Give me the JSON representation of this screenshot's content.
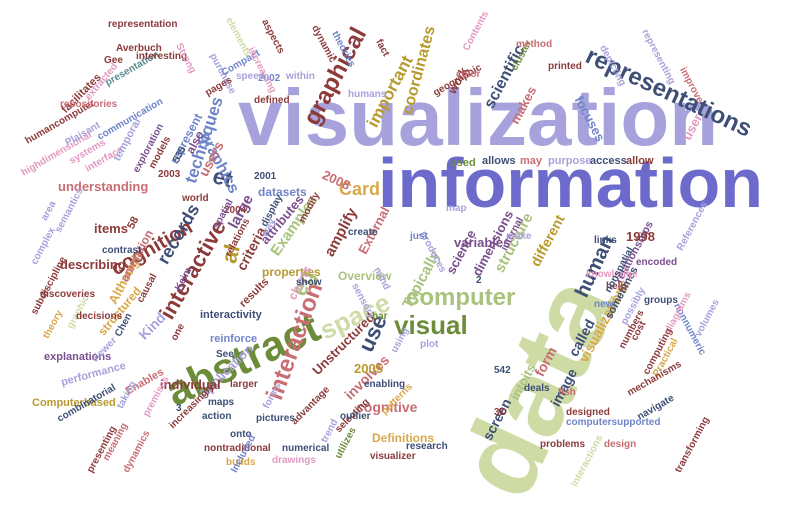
{
  "title": "",
  "palette": {
    "lavender": "#a7a2db",
    "indigo": "#6c6acb",
    "olive": "#a9c27d",
    "sage": "#cfdba5",
    "navy": "#3e4f76",
    "maroon": "#8c3b3a",
    "rose": "#c96d74",
    "pink": "#e39ac2",
    "gold": "#d9a84b",
    "mustard": "#b89b2f",
    "green": "#6c8c3a",
    "brown": "#7a4a32",
    "teal": "#5b8c8e",
    "purple": "#7a4f8e",
    "blue": "#6f85c9"
  },
  "words": [
    {
      "text": "visualization",
      "color": "#a7a2db"
    },
    {
      "text": "information",
      "color": "#6c6acb"
    },
    {
      "text": "data",
      "color": "#cfdba5"
    },
    {
      "text": "abstract",
      "color": "#6c8c3a"
    },
    {
      "text": "representations",
      "color": "#3e4f76"
    },
    {
      "text": "interaction",
      "color": "#c96d74"
    },
    {
      "text": "computer",
      "color": "#a9c27d"
    },
    {
      "text": "visual",
      "color": "#6c8c3a"
    },
    {
      "text": "space",
      "color": "#cfdba5"
    },
    {
      "text": "interactive",
      "color": "#8c3b3a"
    },
    {
      "text": "graphical",
      "color": "#8c3b3a"
    },
    {
      "text": "cognition",
      "color": "#8c3b3a"
    },
    {
      "text": "human",
      "color": "#3e4f76"
    },
    {
      "text": "records",
      "color": "#3e4f76"
    },
    {
      "text": "Card",
      "color": "#d9a84b"
    },
    {
      "text": "use",
      "color": "#3e4f76"
    },
    {
      "text": "eg",
      "color": "#a9c27d"
    },
    {
      "text": "et",
      "color": "#3e4f76"
    },
    {
      "text": "al",
      "color": "#b89b2f"
    },
    {
      "text": "techniques",
      "color": "#6f85c9"
    },
    {
      "text": "graphics",
      "color": "#6f85c9"
    },
    {
      "text": "scientific",
      "color": "#3e4f76"
    },
    {
      "text": "important",
      "color": "#b89b2f"
    },
    {
      "text": "coordinates",
      "color": "#b89b2f"
    },
    {
      "text": "users",
      "color": "#c96d74"
    },
    {
      "text": "understanding",
      "color": "#c96d74"
    },
    {
      "text": "amplify",
      "color": "#8c3b3a"
    },
    {
      "text": "Examples",
      "color": "#a9c27d"
    },
    {
      "text": "Typically",
      "color": "#a9c27d"
    },
    {
      "text": "structure",
      "color": "#a9c27d"
    },
    {
      "text": "different",
      "color": "#b89b2f"
    },
    {
      "text": "visualizations",
      "color": "#d9a84b"
    },
    {
      "text": "Unstructured",
      "color": "#8c3b3a"
    },
    {
      "text": "involves",
      "color": "#c96d74"
    },
    {
      "text": "cognitive",
      "color": "#c96d74"
    },
    {
      "text": "called",
      "color": "#3e4f76"
    },
    {
      "text": "form",
      "color": "#c96d74"
    },
    {
      "text": "image",
      "color": "#3e4f76"
    },
    {
      "text": "screen",
      "color": "#3e4f76"
    },
    {
      "text": "intoits",
      "color": "#a9c27d"
    },
    {
      "text": "Application",
      "color": "#a7a2db"
    },
    {
      "text": "individual",
      "color": "#8c3b3a"
    },
    {
      "text": "Kind",
      "color": "#a7a2db"
    },
    {
      "text": "items",
      "color": "#8c3b3a"
    },
    {
      "text": "describing",
      "color": "#8c3b3a"
    },
    {
      "text": "attributes",
      "color": "#7a4f8e"
    },
    {
      "text": "criteria",
      "color": "#8c3b3a"
    },
    {
      "text": "large",
      "color": "#7a4f8e"
    },
    {
      "text": "External",
      "color": "#c96d74"
    },
    {
      "text": "science",
      "color": "#7a4f8e"
    },
    {
      "text": "dimensions",
      "color": "#7a4f8e"
    },
    {
      "text": "variables",
      "color": "#7a4f8e"
    },
    {
      "text": "relationships",
      "color": "#7a4f8e"
    },
    {
      "text": "makes",
      "color": "#c96d74"
    },
    {
      "text": "focuses",
      "color": "#6f85c9"
    },
    {
      "text": "user",
      "color": "#e39ac2"
    },
    {
      "text": "work",
      "color": "#8c3b3a"
    },
    {
      "text": "datasets",
      "color": "#6f85c9"
    },
    {
      "text": "also",
      "color": "#7a4f8e"
    },
    {
      "text": "2008",
      "color": "#c96d74"
    },
    {
      "text": "1998",
      "color": "#8c3b3a"
    },
    {
      "text": "2005",
      "color": "#b89b2f"
    },
    {
      "text": "Definitions",
      "color": "#d9a84b"
    },
    {
      "text": "Enables",
      "color": "#c96d74"
    },
    {
      "text": "Computerbased",
      "color": "#b89b2f"
    },
    {
      "text": "explanations",
      "color": "#7a4f8e"
    },
    {
      "text": "performance",
      "color": "#a7a2db"
    },
    {
      "text": "structured",
      "color": "#d9a84b"
    },
    {
      "text": "Although",
      "color": "#d9a84b"
    },
    {
      "text": "animation",
      "color": "#c96d74"
    },
    {
      "text": "properties",
      "color": "#b89b2f"
    },
    {
      "text": "interactivity",
      "color": "#3e4f76"
    },
    {
      "text": "reinforce",
      "color": "#6f85c9"
    },
    {
      "text": "charts",
      "color": "#e39ac2"
    },
    {
      "text": "Overview",
      "color": "#a9c27d"
    },
    {
      "text": "results",
      "color": "#8c3b3a"
    },
    {
      "text": "sometimes",
      "color": "#3e4f76"
    },
    {
      "text": "used",
      "color": "#6c8c3a"
    },
    {
      "text": "allows",
      "color": "#3e4f76"
    },
    {
      "text": "may",
      "color": "#c96d74"
    },
    {
      "text": "purpose",
      "color": "#a7a2db"
    },
    {
      "text": "access",
      "color": "#3e4f76"
    },
    {
      "text": "allow",
      "color": "#8c3b3a"
    },
    {
      "text": "humancomputer",
      "color": "#8c3b3a"
    },
    {
      "text": "facilitates",
      "color": "#8c3b3a"
    },
    {
      "text": "highdimensional",
      "color": "#e39ac2"
    },
    {
      "text": "repositories",
      "color": "#c96d74"
    },
    {
      "text": "Plaisant",
      "color": "#a7a2db"
    },
    {
      "text": "systems",
      "color": "#e39ac2"
    },
    {
      "text": "interface",
      "color": "#e39ac2"
    },
    {
      "text": "communication",
      "color": "#6f85c9"
    },
    {
      "text": "exploration",
      "color": "#7a4f8e"
    },
    {
      "text": "temporal",
      "color": "#a7a2db"
    },
    {
      "text": "models",
      "color": "#8c3b3a"
    },
    {
      "text": "represent",
      "color": "#6f85c9"
    },
    {
      "text": "presentation",
      "color": "#5b8c8e"
    },
    {
      "text": "representation",
      "color": "#8c3b3a"
    },
    {
      "text": "Averbuch",
      "color": "#8c3b3a"
    },
    {
      "text": "Gee",
      "color": "#8c3b3a"
    },
    {
      "text": "extracted",
      "color": "#e39ac2"
    },
    {
      "text": "interesting",
      "color": "#8c3b3a"
    },
    {
      "text": "Strong",
      "color": "#e39ac2"
    },
    {
      "text": "purchase",
      "color": "#a7a2db"
    },
    {
      "text": "Compact",
      "color": "#6f85c9"
    },
    {
      "text": "pages",
      "color": "#8c3b3a"
    },
    {
      "text": "defined",
      "color": "#8c3b3a"
    },
    {
      "text": "2002",
      "color": "#6f85c9"
    },
    {
      "text": "within",
      "color": "#a7a2db"
    },
    {
      "text": "increasing",
      "color": "#e39ac2"
    },
    {
      "text": "aspects",
      "color": "#8c3b3a"
    },
    {
      "text": "elements",
      "color": "#cfdba5"
    },
    {
      "text": "dynamic",
      "color": "#8c3b3a"
    },
    {
      "text": "theories",
      "color": "#6f85c9"
    },
    {
      "text": "fact",
      "color": "#8c3b3a"
    },
    {
      "text": "humans",
      "color": "#a7a2db"
    },
    {
      "text": "geographic",
      "color": "#8c3b3a"
    },
    {
      "text": "cluster",
      "color": "#6c8c3a"
    },
    {
      "text": "method",
      "color": "#c96d74"
    },
    {
      "text": "Contents",
      "color": "#e39ac2"
    },
    {
      "text": "color",
      "color": "#c96d74"
    },
    {
      "text": "printed",
      "color": "#8c3b3a"
    },
    {
      "text": "depicting",
      "color": "#a7a2db"
    },
    {
      "text": "improve",
      "color": "#c96d74"
    },
    {
      "text": "representing",
      "color": "#a7a2db"
    },
    {
      "text": "2003",
      "color": "#8c3b3a"
    },
    {
      "text": "2001",
      "color": "#3e4f76"
    },
    {
      "text": "2004",
      "color": "#8c3b3a"
    },
    {
      "text": "world",
      "color": "#8c3b3a"
    },
    {
      "text": "spatial",
      "color": "#7a4f8e"
    },
    {
      "text": "relations",
      "color": "#8c3b3a"
    },
    {
      "text": "display",
      "color": "#3e4f76"
    },
    {
      "text": "modify",
      "color": "#8c3b3a"
    },
    {
      "text": "way",
      "color": "#a7a2db"
    },
    {
      "text": "create",
      "color": "#3e4f76"
    },
    {
      "text": "show",
      "color": "#3e4f76"
    },
    {
      "text": "map",
      "color": "#a7a2db"
    },
    {
      "text": "internal",
      "color": "#7a4f8e"
    },
    {
      "text": "produces",
      "color": "#a7a2db"
    },
    {
      "text": "just",
      "color": "#6f85c9"
    },
    {
      "text": "make",
      "color": "#a7a2db"
    },
    {
      "text": "links",
      "color": "#3e4f76"
    },
    {
      "text": "encoded",
      "color": "#7a4f8e"
    },
    {
      "text": "References",
      "color": "#a7a2db"
    },
    {
      "text": "knowledge",
      "color": "#e39ac2"
    },
    {
      "text": "help",
      "color": "#8c3b3a"
    },
    {
      "text": "groups",
      "color": "#3e4f76"
    },
    {
      "text": "cost",
      "color": "#8c3b3a"
    },
    {
      "text": "nonnumeric",
      "color": "#6f85c9"
    },
    {
      "text": "diagrams",
      "color": "#e39ac2"
    },
    {
      "text": "Practical",
      "color": "#d9a84b"
    },
    {
      "text": "computing",
      "color": "#8c3b3a"
    },
    {
      "text": "mechanisms",
      "color": "#8c3b3a"
    },
    {
      "text": "navigate",
      "color": "#3e4f76"
    },
    {
      "text": "designed",
      "color": "#8c3b3a"
    },
    {
      "text": "computersupported",
      "color": "#6f85c9"
    },
    {
      "text": "design",
      "color": "#c96d74"
    },
    {
      "text": "interactions",
      "color": "#cfdba5"
    },
    {
      "text": "transforming",
      "color": "#8c3b3a"
    },
    {
      "text": "problems",
      "color": "#8c3b3a"
    },
    {
      "text": "research",
      "color": "#3e4f76"
    },
    {
      "text": "visualizer",
      "color": "#8c3b3a"
    },
    {
      "text": "fish",
      "color": "#c96d74"
    },
    {
      "text": "3D",
      "color": "#8c3b3a"
    },
    {
      "text": "542",
      "color": "#3e4f76"
    },
    {
      "text": "deals",
      "color": "#3e4f76"
    },
    {
      "text": "enabling",
      "color": "#3e4f76"
    },
    {
      "text": "using",
      "color": "#a7a2db"
    },
    {
      "text": "plot",
      "color": "#a7a2db"
    },
    {
      "text": "patterns",
      "color": "#d9a84b"
    },
    {
      "text": "selecting",
      "color": "#8c3b3a"
    },
    {
      "text": "outlier",
      "color": "#3e4f76"
    },
    {
      "text": "trend",
      "color": "#a7a2db"
    },
    {
      "text": "utilizes",
      "color": "#6c8c3a"
    },
    {
      "text": "numerical",
      "color": "#3e4f76"
    },
    {
      "text": "drawings",
      "color": "#e39ac2"
    },
    {
      "text": "advantage",
      "color": "#8c3b3a"
    },
    {
      "text": "forms",
      "color": "#a7a2db"
    },
    {
      "text": "pictures",
      "color": "#3e4f76"
    },
    {
      "text": "larger",
      "color": "#8c3b3a"
    },
    {
      "text": "maps",
      "color": "#3e4f76"
    },
    {
      "text": "action",
      "color": "#3e4f76"
    },
    {
      "text": "increasingly",
      "color": "#8c3b3a"
    },
    {
      "text": "premises",
      "color": "#e39ac2"
    },
    {
      "text": "nontraditional",
      "color": "#8c3b3a"
    },
    {
      "text": "builds",
      "color": "#d9a84b"
    },
    {
      "text": "See",
      "color": "#3e4f76"
    },
    {
      "text": "onto",
      "color": "#3e4f76"
    },
    {
      "text": "meaning",
      "color": "#c96d74"
    },
    {
      "text": "dynamics",
      "color": "#c96d74"
    },
    {
      "text": "presenting",
      "color": "#8c3b3a"
    },
    {
      "text": "combinatorial",
      "color": "#3e4f76"
    },
    {
      "text": "theory",
      "color": "#d9a84b"
    },
    {
      "text": "graphic",
      "color": "#cfdba5"
    },
    {
      "text": "subdiscipline",
      "color": "#8c3b3a"
    },
    {
      "text": "decisions",
      "color": "#8c3b3a"
    },
    {
      "text": "discoveries",
      "color": "#8c3b3a"
    },
    {
      "text": "causal",
      "color": "#8c3b3a"
    },
    {
      "text": "Keim",
      "color": "#7a4f8e"
    },
    {
      "text": "contrast",
      "color": "#3e4f76"
    },
    {
      "text": "Chen",
      "color": "#3e4f76"
    },
    {
      "text": "viewer",
      "color": "#a7a2db"
    },
    {
      "text": "one",
      "color": "#8c3b3a"
    },
    {
      "text": "area",
      "color": "#a7a2db"
    },
    {
      "text": "semantics",
      "color": "#a7a2db"
    },
    {
      "text": "complex",
      "color": "#a7a2db"
    },
    {
      "text": "numbers",
      "color": "#8c3b3a"
    },
    {
      "text": "volumes",
      "color": "#a7a2db"
    },
    {
      "text": "Included",
      "color": "#6f85c9"
    },
    {
      "text": "sensory",
      "color": "#a7a2db"
    },
    {
      "text": "mind",
      "color": "#a7a2db"
    },
    {
      "text": "bar",
      "color": "#6c8c3a"
    },
    {
      "text": "new",
      "color": "#6f85c9"
    },
    {
      "text": "possibly",
      "color": "#a7a2db"
    },
    {
      "text": "nonspatial",
      "color": "#3e4f76"
    },
    {
      "text": "speed",
      "color": "#a7a2db"
    },
    {
      "text": "taking",
      "color": "#a7a2db"
    },
    {
      "text": "58",
      "color": "#8c3b3a"
    },
    {
      "text": "535",
      "color": "#3e4f76"
    },
    {
      "text": "3",
      "color": "#3e4f76"
    },
    {
      "text": "2",
      "color": "#3e4f76"
    }
  ]
}
